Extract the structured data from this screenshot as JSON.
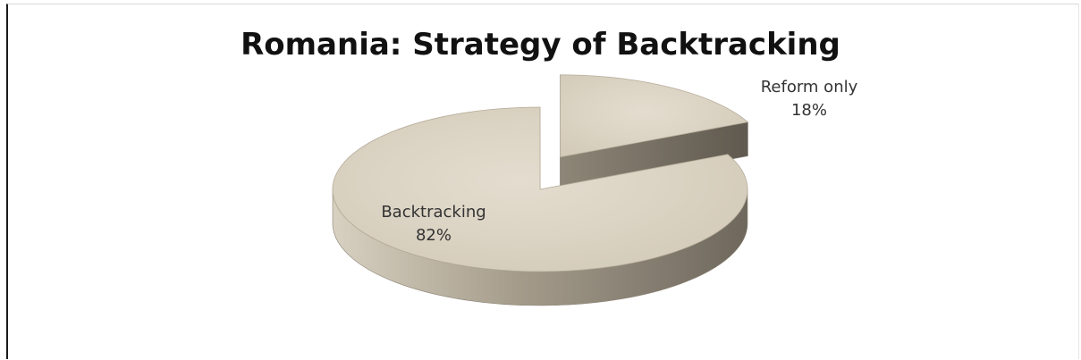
{
  "chart_data": {
    "type": "pie",
    "style": "3d-exploded",
    "title": "Romania: Strategy of Backtracking",
    "categories": [
      "Backtracking",
      "Reform only"
    ],
    "values": [
      82,
      18
    ],
    "value_labels": [
      "82%",
      "18%"
    ],
    "exploded": [
      "Reform only"
    ],
    "legend": "none",
    "colors": {
      "slice_top": "#ddd5c5",
      "slice_side": "#8a8274",
      "slice_edge": "#b5ab99"
    }
  }
}
